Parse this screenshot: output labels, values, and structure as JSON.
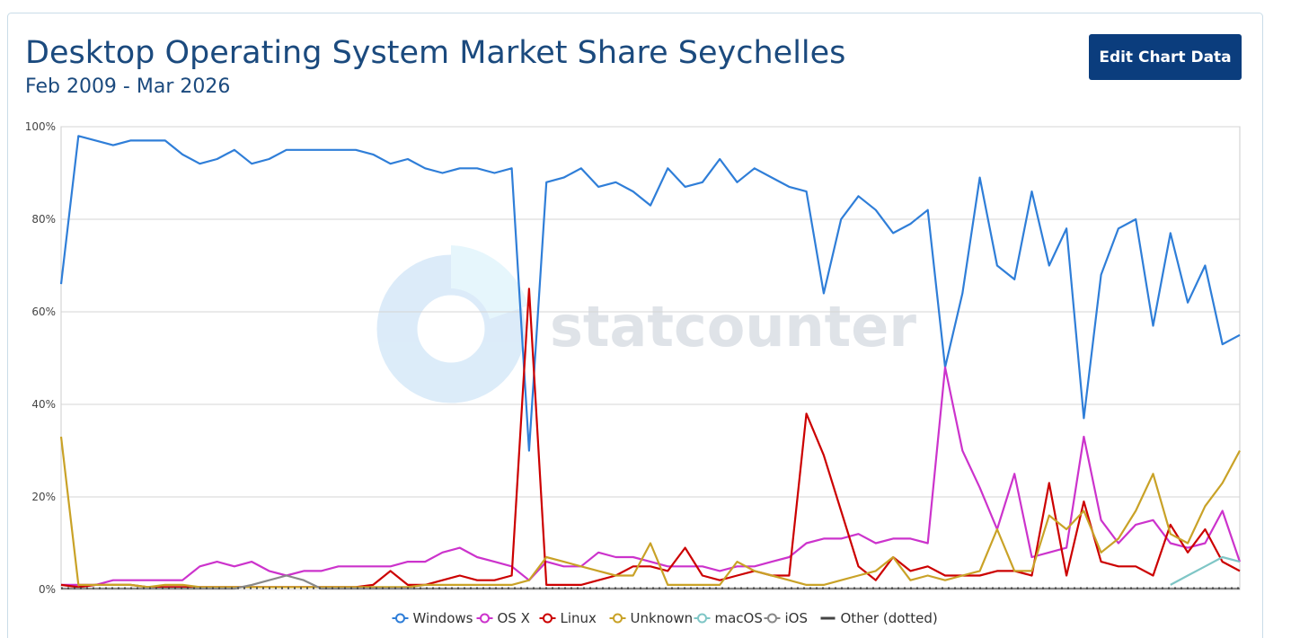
{
  "chart_data": {
    "type": "line",
    "title": "Desktop Operating System Market Share Seychelles",
    "subtitle": "Feb 2009 - Mar 2026",
    "button": "Edit Chart Data",
    "watermark": "statcounter",
    "ylim": [
      0,
      100
    ],
    "yticks": [
      {
        "value": 0,
        "label": "0%"
      },
      {
        "value": 20,
        "label": "20%"
      },
      {
        "value": 40,
        "label": "40%"
      },
      {
        "value": 60,
        "label": "60%"
      },
      {
        "value": 80,
        "label": "80%"
      },
      {
        "value": 100,
        "label": "100%"
      }
    ],
    "grid": true,
    "legend": "bottom",
    "series": [
      {
        "name": "Windows",
        "color": "#2f7ed8",
        "values": [
          66,
          98,
          97,
          96,
          97,
          97,
          97,
          94,
          92,
          93,
          95,
          92,
          93,
          95,
          95,
          95,
          95,
          95,
          94,
          92,
          93,
          91,
          90,
          91,
          91,
          90,
          91,
          30,
          88,
          89,
          91,
          87,
          88,
          86,
          83,
          91,
          87,
          88,
          93,
          88,
          91,
          89,
          87,
          86,
          64,
          80,
          85,
          82,
          77,
          79,
          82,
          48,
          64,
          89,
          70,
          67,
          86,
          70,
          78,
          37,
          68,
          78,
          80,
          57,
          77,
          62,
          70,
          53,
          55
        ]
      },
      {
        "name": "OS X",
        "color": "#cc33cc",
        "values": [
          1,
          1,
          1,
          2,
          2,
          2,
          2,
          2,
          5,
          6,
          5,
          6,
          4,
          3,
          4,
          4,
          5,
          5,
          5,
          5,
          6,
          6,
          8,
          9,
          7,
          6,
          5,
          2,
          6,
          5,
          5,
          8,
          7,
          7,
          6,
          5,
          5,
          5,
          4,
          5,
          5,
          6,
          7,
          10,
          11,
          11,
          12,
          10,
          11,
          11,
          10,
          48,
          30,
          22,
          13,
          25,
          7,
          8,
          9,
          33,
          15,
          10,
          14,
          15,
          10,
          9,
          10,
          17,
          6
        ]
      },
      {
        "name": "Linux",
        "color": "#cc0000",
        "values": [
          1,
          0.5,
          1,
          1,
          1,
          0.5,
          0.5,
          0.5,
          0.5,
          0.5,
          0.5,
          0.5,
          0.5,
          0.5,
          0.5,
          0.5,
          0.5,
          0.5,
          1,
          4,
          1,
          1,
          2,
          3,
          2,
          2,
          3,
          65,
          1,
          1,
          1,
          2,
          3,
          5,
          5,
          4,
          9,
          3,
          2,
          3,
          4,
          3,
          3,
          38,
          29,
          17,
          5,
          2,
          7,
          4,
          5,
          3,
          3,
          3,
          4,
          4,
          3,
          23,
          3,
          19,
          6,
          5,
          5,
          3,
          14,
          8,
          13,
          6,
          4
        ]
      },
      {
        "name": "Unknown",
        "color": "#c9a227",
        "values": [
          33,
          1,
          1,
          1,
          1,
          0.5,
          1,
          1,
          0.5,
          0.5,
          0.5,
          0.5,
          0.5,
          0.5,
          0.5,
          0.5,
          0.5,
          0.5,
          0.5,
          0.5,
          0.5,
          1,
          1,
          1,
          1,
          1,
          1,
          2,
          7,
          6,
          5,
          4,
          3,
          3,
          10,
          1,
          1,
          1,
          1,
          6,
          4,
          3,
          2,
          1,
          1,
          2,
          3,
          4,
          7,
          2,
          3,
          2,
          3,
          4,
          13,
          4,
          4,
          16,
          13,
          17,
          8,
          11,
          17,
          25,
          12,
          10,
          18,
          23,
          30
        ]
      },
      {
        "name": "macOS",
        "color": "#7fc6c6",
        "values": [
          null,
          null,
          null,
          null,
          null,
          null,
          null,
          null,
          null,
          null,
          null,
          null,
          null,
          null,
          null,
          null,
          null,
          null,
          null,
          null,
          null,
          null,
          null,
          null,
          null,
          null,
          null,
          null,
          null,
          null,
          null,
          null,
          null,
          null,
          null,
          null,
          null,
          null,
          null,
          null,
          null,
          null,
          null,
          null,
          null,
          null,
          null,
          null,
          null,
          null,
          null,
          null,
          null,
          null,
          null,
          null,
          null,
          null,
          null,
          null,
          null,
          null,
          null,
          null,
          1,
          3,
          5,
          7,
          6
        ]
      },
      {
        "name": "iOS",
        "color": "#888888",
        "values": [
          0.2,
          0.2,
          0.2,
          0.2,
          0.2,
          0.2,
          0.2,
          0.2,
          0.2,
          0.2,
          0.2,
          1,
          2,
          3,
          2,
          0.2,
          0.2,
          0.2,
          0.2,
          0.2,
          0.2,
          0.2,
          0.2,
          0.2,
          0.2,
          0.2,
          0.2,
          0.2,
          0.2,
          0.2,
          0.2,
          0.2,
          0.2,
          0.2,
          0.2,
          0.2,
          0.2,
          0.2,
          0.2,
          0.2,
          0.2,
          0.2,
          0.2,
          0.2,
          0.2,
          0.2,
          0.2,
          0.2,
          0.2,
          0.2,
          0.2,
          0.2,
          0.2,
          0.2,
          0.2,
          0.2,
          0.2,
          0.2,
          0.2,
          0.2,
          0.2,
          0.2,
          0.2,
          0.2,
          0.2,
          0.2,
          0.2,
          0.2,
          0.2
        ]
      },
      {
        "name": "Other (dotted)",
        "color": "#444444",
        "dotted": true,
        "values": [
          0.3,
          0.3,
          0.3,
          0.3,
          0.3,
          0.3,
          0.3,
          0.3,
          0.3,
          0.3,
          0.3,
          0.3,
          0.3,
          0.3,
          0.3,
          0.3,
          0.3,
          0.3,
          0.3,
          0.3,
          0.3,
          0.3,
          0.3,
          0.3,
          0.3,
          0.3,
          0.3,
          0.3,
          0.3,
          0.3,
          0.3,
          0.3,
          0.3,
          0.3,
          0.3,
          0.3,
          0.3,
          0.3,
          0.3,
          0.3,
          0.3,
          0.3,
          0.3,
          0.3,
          0.3,
          0.3,
          0.3,
          0.3,
          0.3,
          0.3,
          0.3,
          0.3,
          0.3,
          0.3,
          0.3,
          0.3,
          0.3,
          0.3,
          0.3,
          0.3,
          0.3,
          0.3,
          0.3,
          0.3,
          0.3,
          0.3,
          0.3,
          0.3,
          0.3
        ]
      }
    ]
  }
}
